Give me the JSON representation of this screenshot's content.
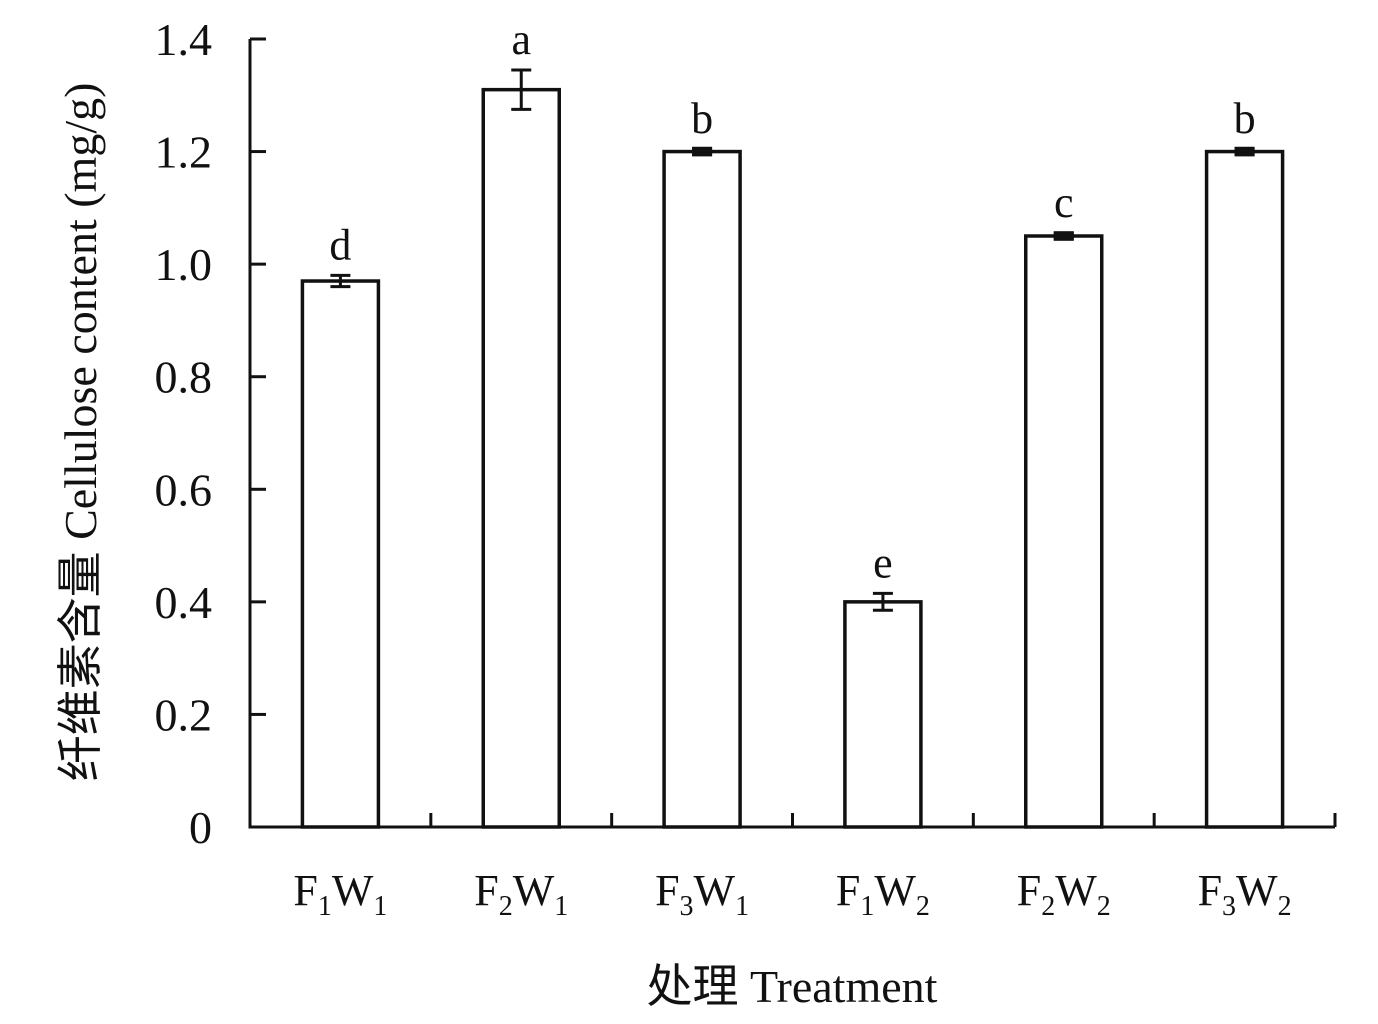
{
  "chart_data": {
    "type": "bar",
    "xlabel": "处理 Treatment",
    "ylabel": "纤维素含量 Cellulose content (mg/g)",
    "ylim": [
      0,
      1.4
    ],
    "yticks": [
      "0",
      "0.2",
      "0.4",
      "0.6",
      "0.8",
      "1.0",
      "1.2",
      "1.4"
    ],
    "categories": [
      {
        "main1": "F",
        "sub1": "1",
        "main2": "W",
        "sub2": "1"
      },
      {
        "main1": "F",
        "sub1": "2",
        "main2": "W",
        "sub2": "1"
      },
      {
        "main1": "F",
        "sub1": "3",
        "main2": "W",
        "sub2": "1"
      },
      {
        "main1": "F",
        "sub1": "1",
        "main2": "W",
        "sub2": "2"
      },
      {
        "main1": "F",
        "sub1": "2",
        "main2": "W",
        "sub2": "2"
      },
      {
        "main1": "F",
        "sub1": "3",
        "main2": "W",
        "sub2": "2"
      }
    ],
    "values": [
      0.97,
      1.31,
      1.2,
      0.4,
      1.05,
      1.2
    ],
    "errors": [
      0.01,
      0.035,
      0.005,
      0.015,
      0.005,
      0.005
    ],
    "significance": [
      "d",
      "a",
      "b",
      "e",
      "c",
      "b"
    ],
    "grid": false,
    "bar_fill": "#ffffff",
    "bar_stroke": "#111111"
  }
}
